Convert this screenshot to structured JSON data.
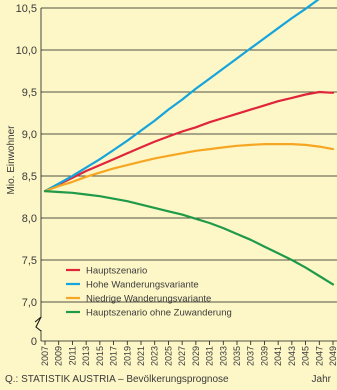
{
  "chart_data": {
    "type": "line",
    "ylabel": "Mio. Einwohner",
    "xlabel": "Jahr",
    "source": "Q.: STATISTIK AUSTRIA – Bevölkerungsprognose",
    "ylim": [
      7.0,
      10.5
    ],
    "yticks": [
      "10,5",
      "10,0",
      "9,5",
      "9,0",
      "8,5",
      "8,0",
      "7,5",
      "7,0"
    ],
    "ytick_values": [
      10.5,
      10.0,
      9.5,
      9.0,
      8.5,
      8.0,
      7.5,
      7.0
    ],
    "zero_label": "0",
    "y_axis_break": true,
    "grid": true,
    "legend_position": "bottom-left",
    "x": [
      2007,
      2009,
      2011,
      2013,
      2015,
      2017,
      2019,
      2021,
      2023,
      2025,
      2027,
      2029,
      2031,
      2033,
      2035,
      2037,
      2039,
      2041,
      2043,
      2045,
      2047,
      2049
    ],
    "xticks": [
      "2007",
      "2009",
      "2011",
      "2013",
      "2015",
      "2017",
      "2019",
      "2021",
      "2023",
      "2025",
      "2027",
      "2029",
      "2031",
      "2033",
      "2035",
      "2037",
      "2039",
      "2041",
      "2043",
      "2045",
      "2047",
      "2049"
    ],
    "series": [
      {
        "name": "Hauptszenario",
        "color": "#e0253a",
        "values": [
          8.32,
          8.4,
          8.48,
          8.56,
          8.63,
          8.7,
          8.77,
          8.84,
          8.91,
          8.97,
          9.03,
          9.08,
          9.14,
          9.19,
          9.24,
          9.29,
          9.34,
          9.39,
          9.43,
          9.47,
          9.5,
          9.49
        ]
      },
      {
        "name": "Hohe Wanderungsvariante",
        "color": "#15a4dc",
        "values": [
          8.32,
          8.41,
          8.5,
          8.6,
          8.7,
          8.81,
          8.92,
          9.04,
          9.16,
          9.29,
          9.41,
          9.54,
          9.66,
          9.78,
          9.9,
          10.02,
          10.14,
          10.26,
          10.38,
          10.49,
          10.61,
          10.72
        ]
      },
      {
        "name": "Niedrige Wanderungsvariante",
        "color": "#f6a623",
        "values": [
          8.32,
          8.38,
          8.43,
          8.49,
          8.54,
          8.59,
          8.63,
          8.67,
          8.71,
          8.74,
          8.77,
          8.8,
          8.82,
          8.84,
          8.86,
          8.87,
          8.88,
          8.88,
          8.88,
          8.87,
          8.85,
          8.82
        ]
      },
      {
        "name": "Hauptszenario ohne Zuwanderung",
        "color": "#1f9a48",
        "values": [
          8.32,
          8.31,
          8.3,
          8.28,
          8.26,
          8.23,
          8.2,
          8.16,
          8.12,
          8.08,
          8.04,
          7.99,
          7.94,
          7.88,
          7.81,
          7.74,
          7.66,
          7.58,
          7.5,
          7.41,
          7.31,
          7.21
        ]
      }
    ]
  }
}
